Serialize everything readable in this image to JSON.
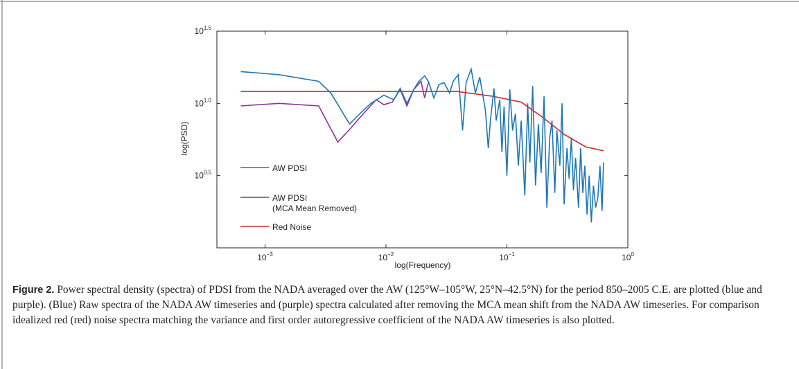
{
  "chart_data": {
    "type": "line",
    "x_label": "log(Frequency)",
    "y_label": "log(PSD)",
    "x_scale": "log",
    "y_scale": "log",
    "xlim": [
      0.0004,
      1
    ],
    "ylim": [
      1,
      31.62
    ],
    "xticks": [
      {
        "value": 0.001,
        "label": "10^−3"
      },
      {
        "value": 0.01,
        "label": "10^−2"
      },
      {
        "value": 0.1,
        "label": "10^−1"
      },
      {
        "value": 1,
        "label": "10^0"
      }
    ],
    "yticks": [
      {
        "value": 3.162,
        "label": "10^0.5"
      },
      {
        "value": 10,
        "label": "10^1.0"
      },
      {
        "value": 31.62,
        "label": "10^1.5"
      }
    ],
    "legend": "lower left",
    "series": [
      {
        "name": "AW PDSI",
        "color": "#1f77b4",
        "x": [
          0.00063,
          0.00131,
          0.00278,
          0.0035,
          0.005,
          0.0061,
          0.0075,
          0.0096,
          0.0116,
          0.0131,
          0.0149,
          0.017,
          0.0187,
          0.0209,
          0.0224,
          0.0249,
          0.0274,
          0.0302,
          0.0336,
          0.036,
          0.0396,
          0.043,
          0.046,
          0.0506,
          0.0549,
          0.0596,
          0.0664,
          0.0701,
          0.0731,
          0.0782,
          0.0815,
          0.0873,
          0.091,
          0.0947,
          0.1,
          0.1056,
          0.1115,
          0.1177,
          0.1244,
          0.1313,
          0.1406,
          0.1485,
          0.1547,
          0.1633,
          0.1725,
          0.182,
          0.192,
          0.203,
          0.214,
          0.226,
          0.236,
          0.249,
          0.259,
          0.274,
          0.286,
          0.297,
          0.314,
          0.327,
          0.341,
          0.355,
          0.37,
          0.391,
          0.407,
          0.424,
          0.441,
          0.46,
          0.479,
          0.499,
          0.52,
          0.542,
          0.564,
          0.588,
          0.612,
          0.629
        ],
        "values": [
          16.6,
          15.8,
          14.2,
          11.8,
          7.2,
          8.5,
          10,
          11.4,
          10.6,
          12.7,
          10,
          12.5,
          14.2,
          15.5,
          14.2,
          10.9,
          13.5,
          13.9,
          11.8,
          14.2,
          15.8,
          6.5,
          13.9,
          17.3,
          11.8,
          15.2,
          9.0,
          4.9,
          7.6,
          12.7,
          7.6,
          10.6,
          4.6,
          9.5,
          3.16,
          12.5,
          6.5,
          8.5,
          3.7,
          7.6,
          2.3,
          10,
          3.9,
          13.2,
          2.7,
          7.2,
          3.3,
          11.2,
          1.9,
          5.8,
          7.6,
          2.4,
          6.5,
          3.7,
          10,
          2.0,
          4.9,
          3.0,
          5.8,
          2.5,
          4.2,
          1.9,
          4.9,
          2.4,
          3.7,
          1.7,
          3.16,
          1.5,
          2.7,
          1.9,
          2.2,
          3.7,
          1.8,
          3.9
        ]
      },
      {
        "name": "AW PDSI",
        "subname": "(MCA Mean Removed)",
        "color": "#8e2f9a",
        "x": [
          0.00063,
          0.00131,
          0.00278,
          0.004,
          0.005,
          0.0061,
          0.0083,
          0.0096,
          0.0113,
          0.0131,
          0.0149,
          0.017,
          0.0195,
          0.0209,
          0.0224
        ],
        "values": [
          9.6,
          10.0,
          9.6,
          5.4,
          6.6,
          8.0,
          10.6,
          9.8,
          10.2,
          12.5,
          9.6,
          12.5,
          14.2,
          10.9,
          13.9
        ]
      },
      {
        "name": "Red Noise",
        "color": "#d62728",
        "x": [
          0.00063,
          0.01,
          0.0385,
          0.0762,
          0.1313,
          0.198,
          0.297,
          0.448,
          0.629
        ],
        "values": [
          12.1,
          12.1,
          12.1,
          11.2,
          10.2,
          8.0,
          6.1,
          5.0,
          4.7
        ]
      }
    ]
  },
  "caption": {
    "label": "Figure 2.",
    "text": "Power spectral density (spectra) of PDSI from the NADA averaged over the AW (125°W–105°W, 25°N–42.5°N) for the period 850–2005 C.E. are plotted (blue and purple). (Blue) Raw spectra of the NADA AW timeseries and (purple) spectra calculated after removing the MCA mean shift from the NADA AW timeseries. For comparison idealized red (red) noise spectra matching the variance and first order autoregressive coefficient of the NADA AW timeseries is also plotted."
  }
}
